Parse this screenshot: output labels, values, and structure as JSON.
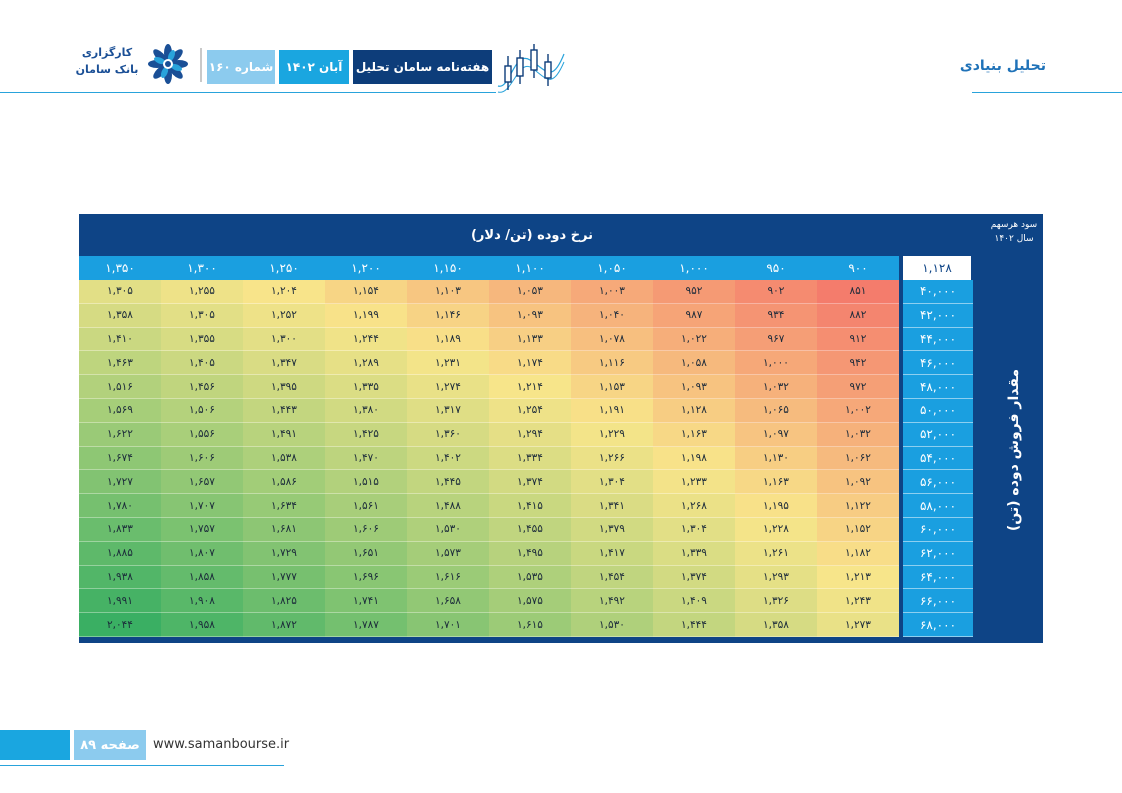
{
  "header": {
    "section": "تحلیل بنیادی",
    "logo_line1": "کارگزاری",
    "logo_line2": "بانک سامان",
    "issue": "شماره ۱۶۰",
    "date": "آبان ۱۴۰۲",
    "title": "هفته‌نامه سامان تحلیل"
  },
  "table": {
    "title": "نرخ دوده (تن/ دلار)",
    "corner_line1": "سود هرسهم",
    "corner_line2": "سال ۱۴۰۲",
    "row_axis_label": "مقدار فروش دوده (تن)",
    "base_value": "۱,۱۲۸",
    "columns": [
      "۱,۳۵۰",
      "۱,۳۰۰",
      "۱,۲۵۰",
      "۱,۲۰۰",
      "۱,۱۵۰",
      "۱,۱۰۰",
      "۱,۰۵۰",
      "۱,۰۰۰",
      "۹۵۰",
      "۹۰۰"
    ],
    "rows": [
      {
        "label": "۴۰,۰۰۰",
        "cells": [
          "۱,۳۰۵",
          "۱,۲۵۵",
          "۱,۲۰۴",
          "۱,۱۵۴",
          "۱,۱۰۳",
          "۱,۰۵۳",
          "۱,۰۰۳",
          "۹۵۲",
          "۹۰۲",
          "۸۵۱"
        ]
      },
      {
        "label": "۴۲,۰۰۰",
        "cells": [
          "۱,۳۵۸",
          "۱,۳۰۵",
          "۱,۲۵۲",
          "۱,۱۹۹",
          "۱,۱۴۶",
          "۱,۰۹۳",
          "۱,۰۴۰",
          "۹۸۷",
          "۹۳۴",
          "۸۸۲"
        ]
      },
      {
        "label": "۴۴,۰۰۰",
        "cells": [
          "۱,۴۱۰",
          "۱,۳۵۵",
          "۱,۳۰۰",
          "۱,۲۴۴",
          "۱,۱۸۹",
          "۱,۱۳۳",
          "۱,۰۷۸",
          "۱,۰۲۲",
          "۹۶۷",
          "۹۱۲"
        ]
      },
      {
        "label": "۴۶,۰۰۰",
        "cells": [
          "۱,۴۶۳",
          "۱,۴۰۵",
          "۱,۳۴۷",
          "۱,۲۸۹",
          "۱,۲۳۱",
          "۱,۱۷۴",
          "۱,۱۱۶",
          "۱,۰۵۸",
          "۱,۰۰۰",
          "۹۴۲"
        ]
      },
      {
        "label": "۴۸,۰۰۰",
        "cells": [
          "۱,۵۱۶",
          "۱,۴۵۶",
          "۱,۳۹۵",
          "۱,۳۳۵",
          "۱,۲۷۴",
          "۱,۲۱۴",
          "۱,۱۵۳",
          "۱,۰۹۳",
          "۱,۰۳۲",
          "۹۷۲"
        ]
      },
      {
        "label": "۵۰,۰۰۰",
        "cells": [
          "۱,۵۶۹",
          "۱,۵۰۶",
          "۱,۴۴۳",
          "۱,۳۸۰",
          "۱,۳۱۷",
          "۱,۲۵۴",
          "۱,۱۹۱",
          "۱,۱۲۸",
          "۱,۰۶۵",
          "۱,۰۰۲"
        ]
      },
      {
        "label": "۵۲,۰۰۰",
        "cells": [
          "۱,۶۲۲",
          "۱,۵۵۶",
          "۱,۴۹۱",
          "۱,۴۲۵",
          "۱,۳۶۰",
          "۱,۲۹۴",
          "۱,۲۲۹",
          "۱,۱۶۳",
          "۱,۰۹۷",
          "۱,۰۳۲"
        ]
      },
      {
        "label": "۵۴,۰۰۰",
        "cells": [
          "۱,۶۷۴",
          "۱,۶۰۶",
          "۱,۵۳۸",
          "۱,۴۷۰",
          "۱,۴۰۲",
          "۱,۳۳۴",
          "۱,۲۶۶",
          "۱,۱۹۸",
          "۱,۱۳۰",
          "۱,۰۶۲"
        ]
      },
      {
        "label": "۵۶,۰۰۰",
        "cells": [
          "۱,۷۲۷",
          "۱,۶۵۷",
          "۱,۵۸۶",
          "۱,۵۱۵",
          "۱,۴۴۵",
          "۱,۳۷۴",
          "۱,۳۰۴",
          "۱,۲۳۳",
          "۱,۱۶۳",
          "۱,۰۹۲"
        ]
      },
      {
        "label": "۵۸,۰۰۰",
        "cells": [
          "۱,۷۸۰",
          "۱,۷۰۷",
          "۱,۶۳۴",
          "۱,۵۶۱",
          "۱,۴۸۸",
          "۱,۴۱۵",
          "۱,۳۴۱",
          "۱,۲۶۸",
          "۱,۱۹۵",
          "۱,۱۲۲"
        ]
      },
      {
        "label": "۶۰,۰۰۰",
        "cells": [
          "۱,۸۳۳",
          "۱,۷۵۷",
          "۱,۶۸۱",
          "۱,۶۰۶",
          "۱,۵۳۰",
          "۱,۴۵۵",
          "۱,۳۷۹",
          "۱,۳۰۴",
          "۱,۲۲۸",
          "۱,۱۵۲"
        ]
      },
      {
        "label": "۶۲,۰۰۰",
        "cells": [
          "۱,۸۸۵",
          "۱,۸۰۷",
          "۱,۷۲۹",
          "۱,۶۵۱",
          "۱,۵۷۳",
          "۱,۴۹۵",
          "۱,۴۱۷",
          "۱,۳۳۹",
          "۱,۲۶۱",
          "۱,۱۸۲"
        ]
      },
      {
        "label": "۶۴,۰۰۰",
        "cells": [
          "۱,۹۳۸",
          "۱,۸۵۸",
          "۱,۷۷۷",
          "۱,۶۹۶",
          "۱,۶۱۶",
          "۱,۵۳۵",
          "۱,۴۵۴",
          "۱,۳۷۴",
          "۱,۲۹۳",
          "۱,۲۱۳"
        ]
      },
      {
        "label": "۶۶,۰۰۰",
        "cells": [
          "۱,۹۹۱",
          "۱,۹۰۸",
          "۱,۸۲۵",
          "۱,۷۴۱",
          "۱,۶۵۸",
          "۱,۵۷۵",
          "۱,۴۹۲",
          "۱,۴۰۹",
          "۱,۳۲۶",
          "۱,۲۴۳"
        ]
      },
      {
        "label": "۶۸,۰۰۰",
        "cells": [
          "۲,۰۴۴",
          "۱,۹۵۸",
          "۱,۸۷۲",
          "۱,۷۸۷",
          "۱,۷۰۱",
          "۱,۶۱۵",
          "۱,۵۳۰",
          "۱,۴۴۴",
          "۱,۳۵۸",
          "۱,۲۷۳"
        ]
      }
    ],
    "colors": {
      "header_bg": "#0e4486",
      "axis_bg": "#1a9fe0",
      "low": "#f47c6c",
      "mid": "#f8e58a",
      "high": "#3aaf63"
    }
  },
  "footer": {
    "page": "صفحه ۸۹",
    "url": "www.samanbourse.ir"
  }
}
